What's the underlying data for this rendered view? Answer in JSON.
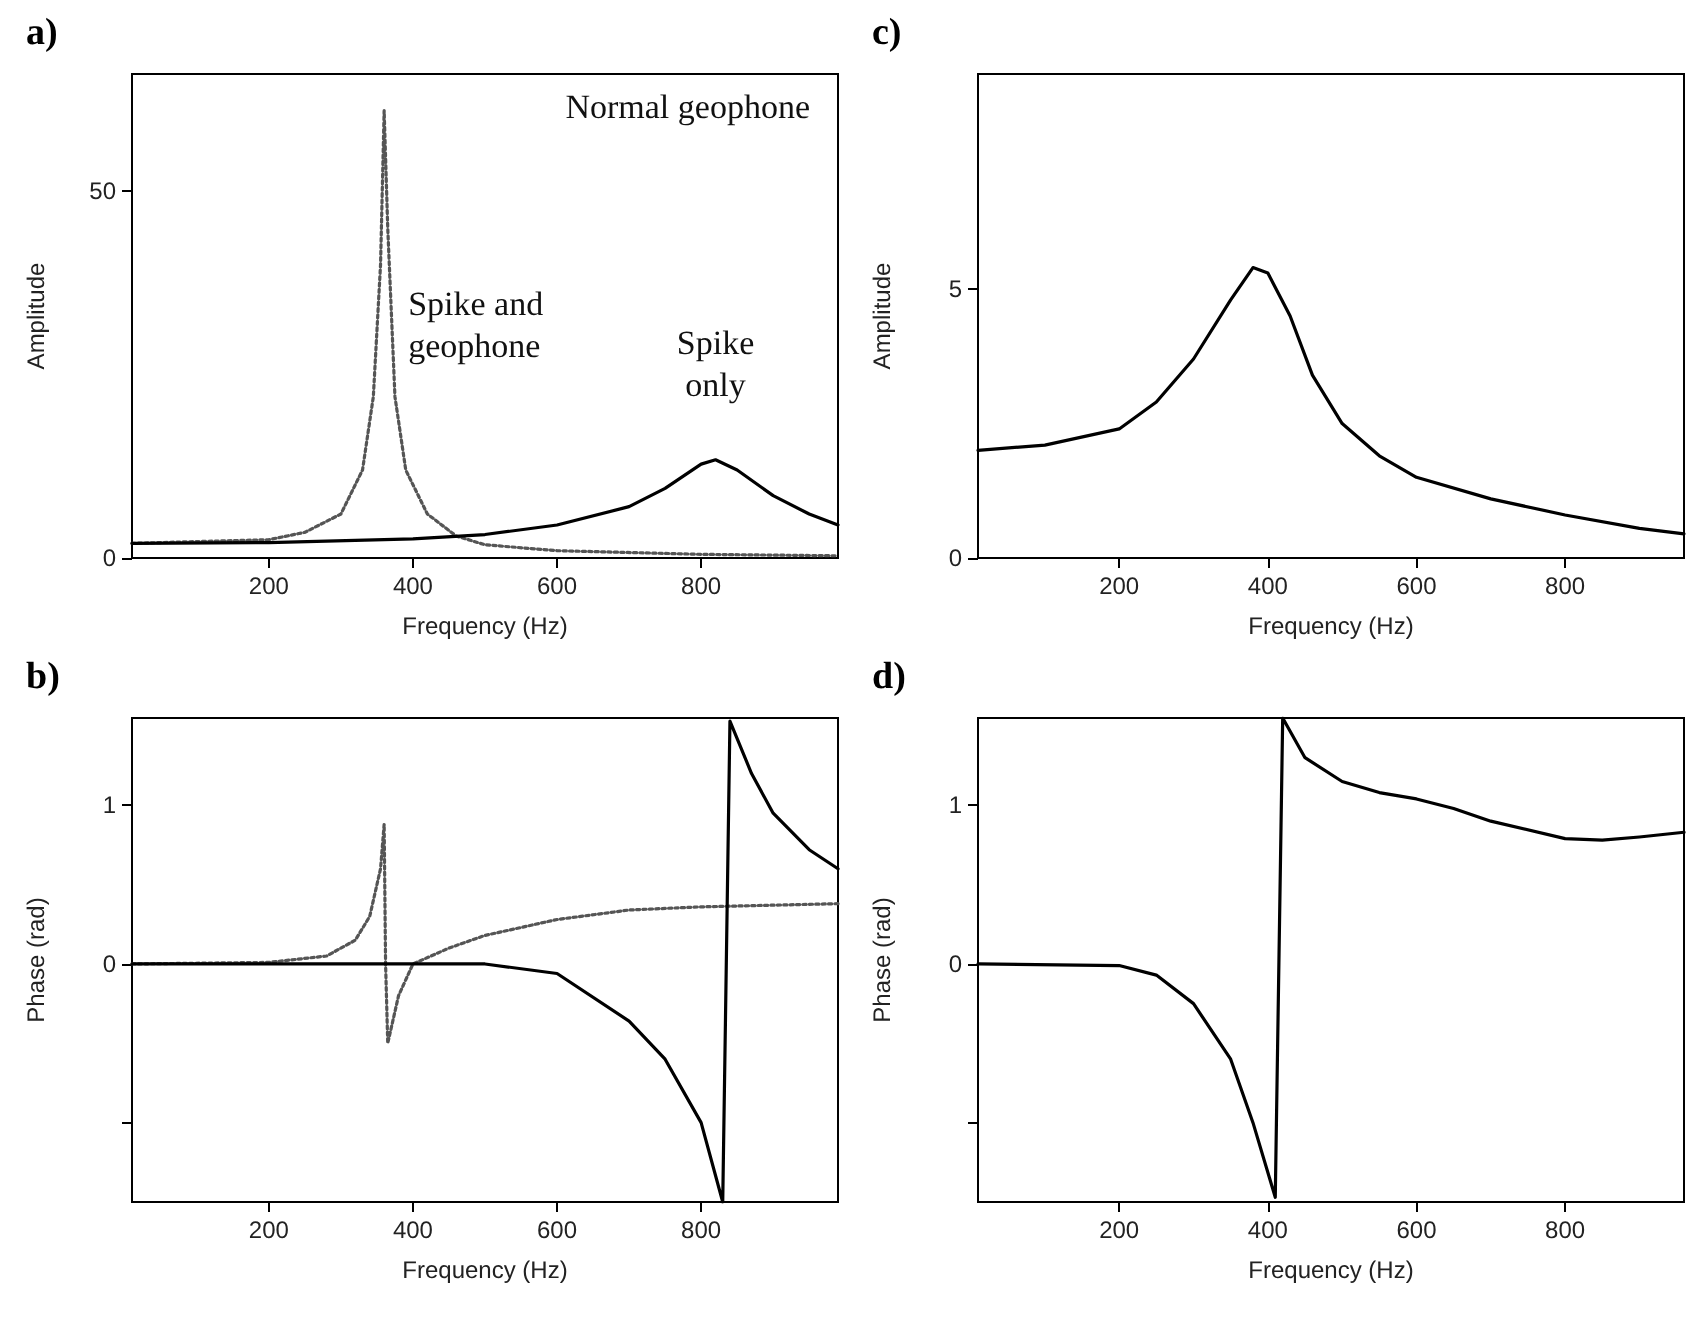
{
  "chart_data": [
    {
      "type": "line",
      "title": "a)",
      "xlabel": "Frequency (Hz)",
      "ylabel": "Amplitude",
      "xlim": [
        10,
        990
      ],
      "xticks": [
        200,
        400,
        600,
        800
      ],
      "ylim": [
        0,
        66
      ],
      "yticks": [
        0,
        50
      ],
      "grid": false,
      "marker": "none",
      "annotations": [
        "Normal geophone"
      ],
      "series": [
        {
          "name": "Spike and\ngeophone",
          "color": "#555555",
          "line_style": "dotted",
          "x": [
            10,
            200,
            250,
            300,
            330,
            345,
            355,
            360,
            365,
            375,
            390,
            420,
            460,
            500,
            600,
            800,
            990
          ],
          "values": [
            2,
            2.5,
            3.5,
            6,
            12,
            22,
            40,
            61,
            45,
            22,
            12,
            6,
            3,
            1.8,
            1,
            0.5,
            0.3
          ]
        },
        {
          "name": "Spike\nonly",
          "color": "#000000",
          "line_style": "solid",
          "x": [
            10,
            200,
            400,
            500,
            600,
            700,
            750,
            800,
            820,
            850,
            900,
            950,
            990
          ],
          "values": [
            2,
            2.1,
            2.6,
            3.2,
            4.5,
            7,
            9.5,
            12.8,
            13.4,
            12,
            8.5,
            6,
            4.5
          ]
        }
      ]
    },
    {
      "type": "line",
      "title": "c)",
      "xlabel": "Frequency (Hz)",
      "ylabel": "Amplitude",
      "xlim": [
        10,
        960
      ],
      "xticks": [
        200,
        400,
        600,
        800
      ],
      "ylim": [
        0,
        9
      ],
      "yticks": [
        0,
        5
      ],
      "grid": false,
      "marker": "none",
      "series": [
        {
          "color": "#000000",
          "line_style": "solid",
          "x": [
            10,
            100,
            200,
            250,
            300,
            350,
            380,
            400,
            430,
            460,
            500,
            550,
            600,
            700,
            800,
            900,
            960
          ],
          "values": [
            2,
            2.1,
            2.4,
            2.9,
            3.7,
            4.8,
            5.4,
            5.3,
            4.5,
            3.4,
            2.5,
            1.9,
            1.5,
            1.1,
            0.8,
            0.55,
            0.45
          ]
        }
      ]
    },
    {
      "type": "line",
      "title": "b)",
      "xlabel": "Frequency (Hz)",
      "ylabel": "Phase (rad)",
      "xlim": [
        10,
        990
      ],
      "xticks": [
        200,
        400,
        600,
        800
      ],
      "ylim": [
        -1.5,
        1.55
      ],
      "yticks": [
        {
          "value": -1,
          "label": null
        },
        0,
        1
      ],
      "grid": false,
      "marker": "none",
      "series": [
        {
          "color": "#555555",
          "line_style": "dotted",
          "x": [
            10,
            200,
            280,
            320,
            340,
            355,
            360,
            362,
            365,
            380,
            400,
            450,
            500,
            600,
            700,
            800,
            990
          ],
          "values": [
            0,
            0.01,
            0.05,
            0.15,
            0.3,
            0.6,
            0.88,
            0,
            -0.5,
            -0.2,
            0,
            0.1,
            0.18,
            0.28,
            0.34,
            0.36,
            0.38
          ]
        },
        {
          "color": "#000000",
          "line_style": "solid",
          "x": [
            10,
            500,
            600,
            700,
            750,
            800,
            830,
            840,
            870,
            900,
            950,
            990
          ],
          "values": [
            0,
            0,
            -0.06,
            -0.36,
            -0.6,
            -1,
            -1.5,
            1.53,
            1.2,
            0.95,
            0.72,
            0.6
          ]
        }
      ]
    },
    {
      "type": "line",
      "title": "d)",
      "xlabel": "Frequency (Hz)",
      "ylabel": "Phase (rad)",
      "xlim": [
        10,
        960
      ],
      "xticks": [
        200,
        400,
        600,
        800
      ],
      "ylim": [
        -1.5,
        1.55
      ],
      "yticks": [
        {
          "value": -1,
          "label": null
        },
        0,
        1
      ],
      "grid": false,
      "marker": "none",
      "series": [
        {
          "color": "#000000",
          "line_style": "solid",
          "x": [
            10,
            200,
            250,
            300,
            350,
            380,
            410,
            420,
            450,
            500,
            550,
            600,
            650,
            700,
            800,
            850,
            900,
            960
          ],
          "values": [
            0,
            -0.01,
            -0.07,
            -0.25,
            -0.6,
            -1,
            -1.47,
            1.55,
            1.3,
            1.15,
            1.08,
            1.04,
            0.98,
            0.9,
            0.79,
            0.78,
            0.8,
            0.83
          ]
        }
      ]
    }
  ]
}
